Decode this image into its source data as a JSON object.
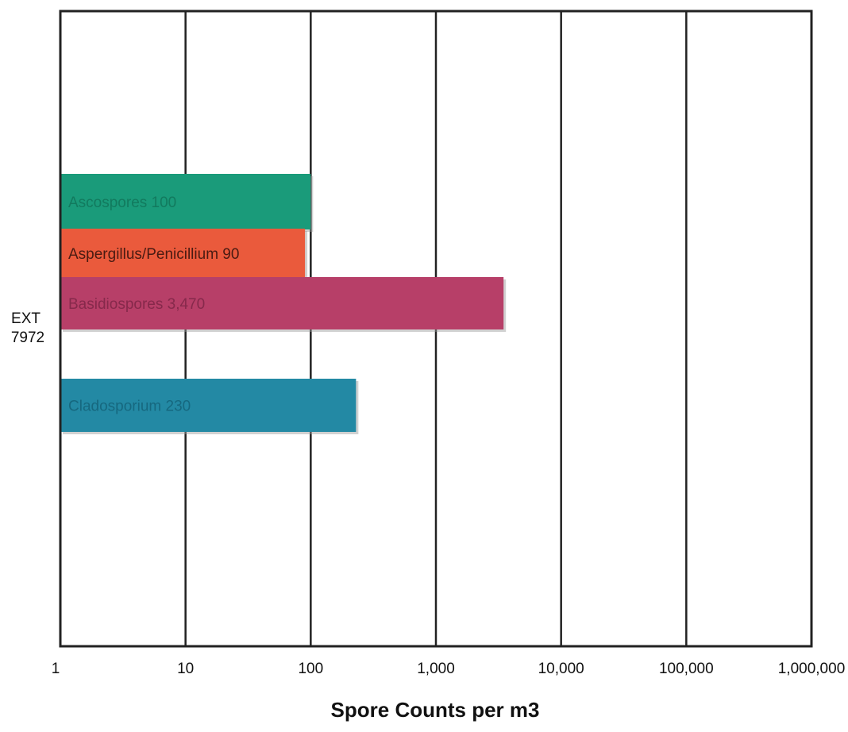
{
  "chart_data": {
    "type": "bar",
    "orientation": "horizontal",
    "xscale": "log",
    "xlim": [
      1,
      1000000
    ],
    "xticks": [
      1,
      10,
      100,
      1000,
      10000,
      100000,
      1000000
    ],
    "xtick_labels": [
      "1",
      "10",
      "100",
      "1,000",
      "10,000",
      "100,000",
      "1,000,000"
    ],
    "xlabel": "Spore Counts per m3",
    "ylabel": "",
    "title": "",
    "grid": true,
    "categories": [
      "EXT 7972"
    ],
    "category_lines": [
      "EXT",
      "7972"
    ],
    "series": [
      {
        "name": "Ascospores",
        "value": 100,
        "label": "Ascospores 100",
        "color": "#1a9b7a",
        "label_color": "#127a5e"
      },
      {
        "name": "Aspergillus/Penicillium",
        "value": 90,
        "label": "Aspergillus/Penicillium 90",
        "color": "#ea5a3c",
        "label_color": "#4a1b12"
      },
      {
        "name": "Basidiospores",
        "value": 3470,
        "label": "Basidiospores 3,470",
        "color": "#b73f68",
        "label_color": "#86294b"
      },
      {
        "name": "Cladosporium",
        "value": 230,
        "label": "Cladosporium 230",
        "color": "#2389a4",
        "label_color": "#16687f"
      }
    ]
  }
}
